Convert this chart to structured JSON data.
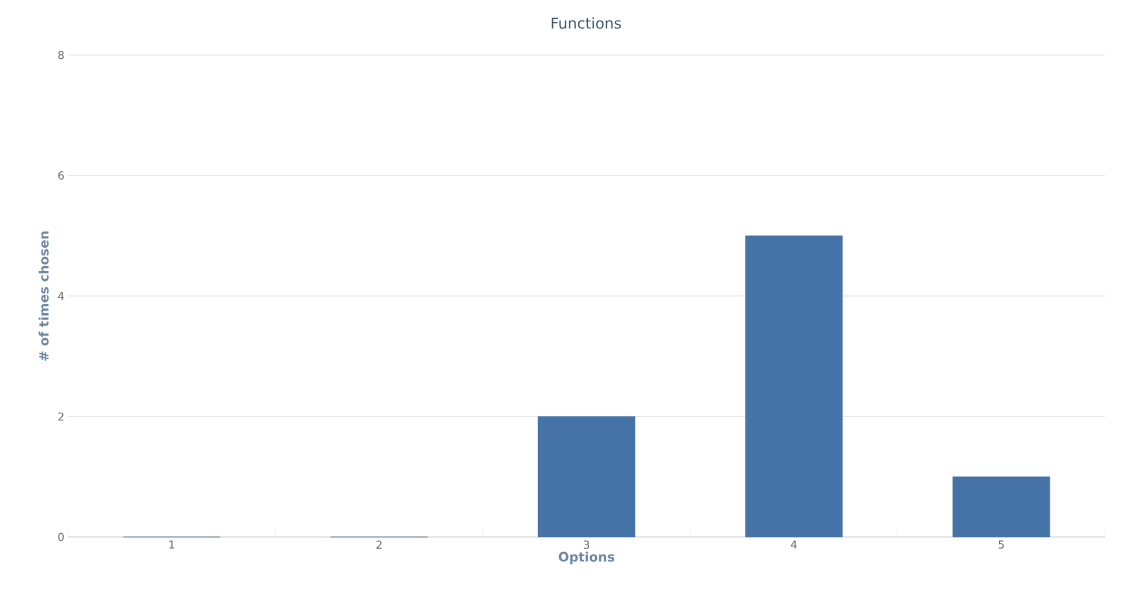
{
  "chart_data": {
    "type": "bar",
    "title": "Functions",
    "xlabel": "Options",
    "ylabel": "# of times chosen",
    "categories": [
      "1",
      "2",
      "3",
      "4",
      "5"
    ],
    "values": [
      0,
      0,
      2,
      5,
      1
    ],
    "color": "#4572a7",
    "ylim": [
      0,
      8
    ],
    "yticks": [
      0,
      2,
      4,
      6,
      8
    ],
    "grid": "y"
  }
}
